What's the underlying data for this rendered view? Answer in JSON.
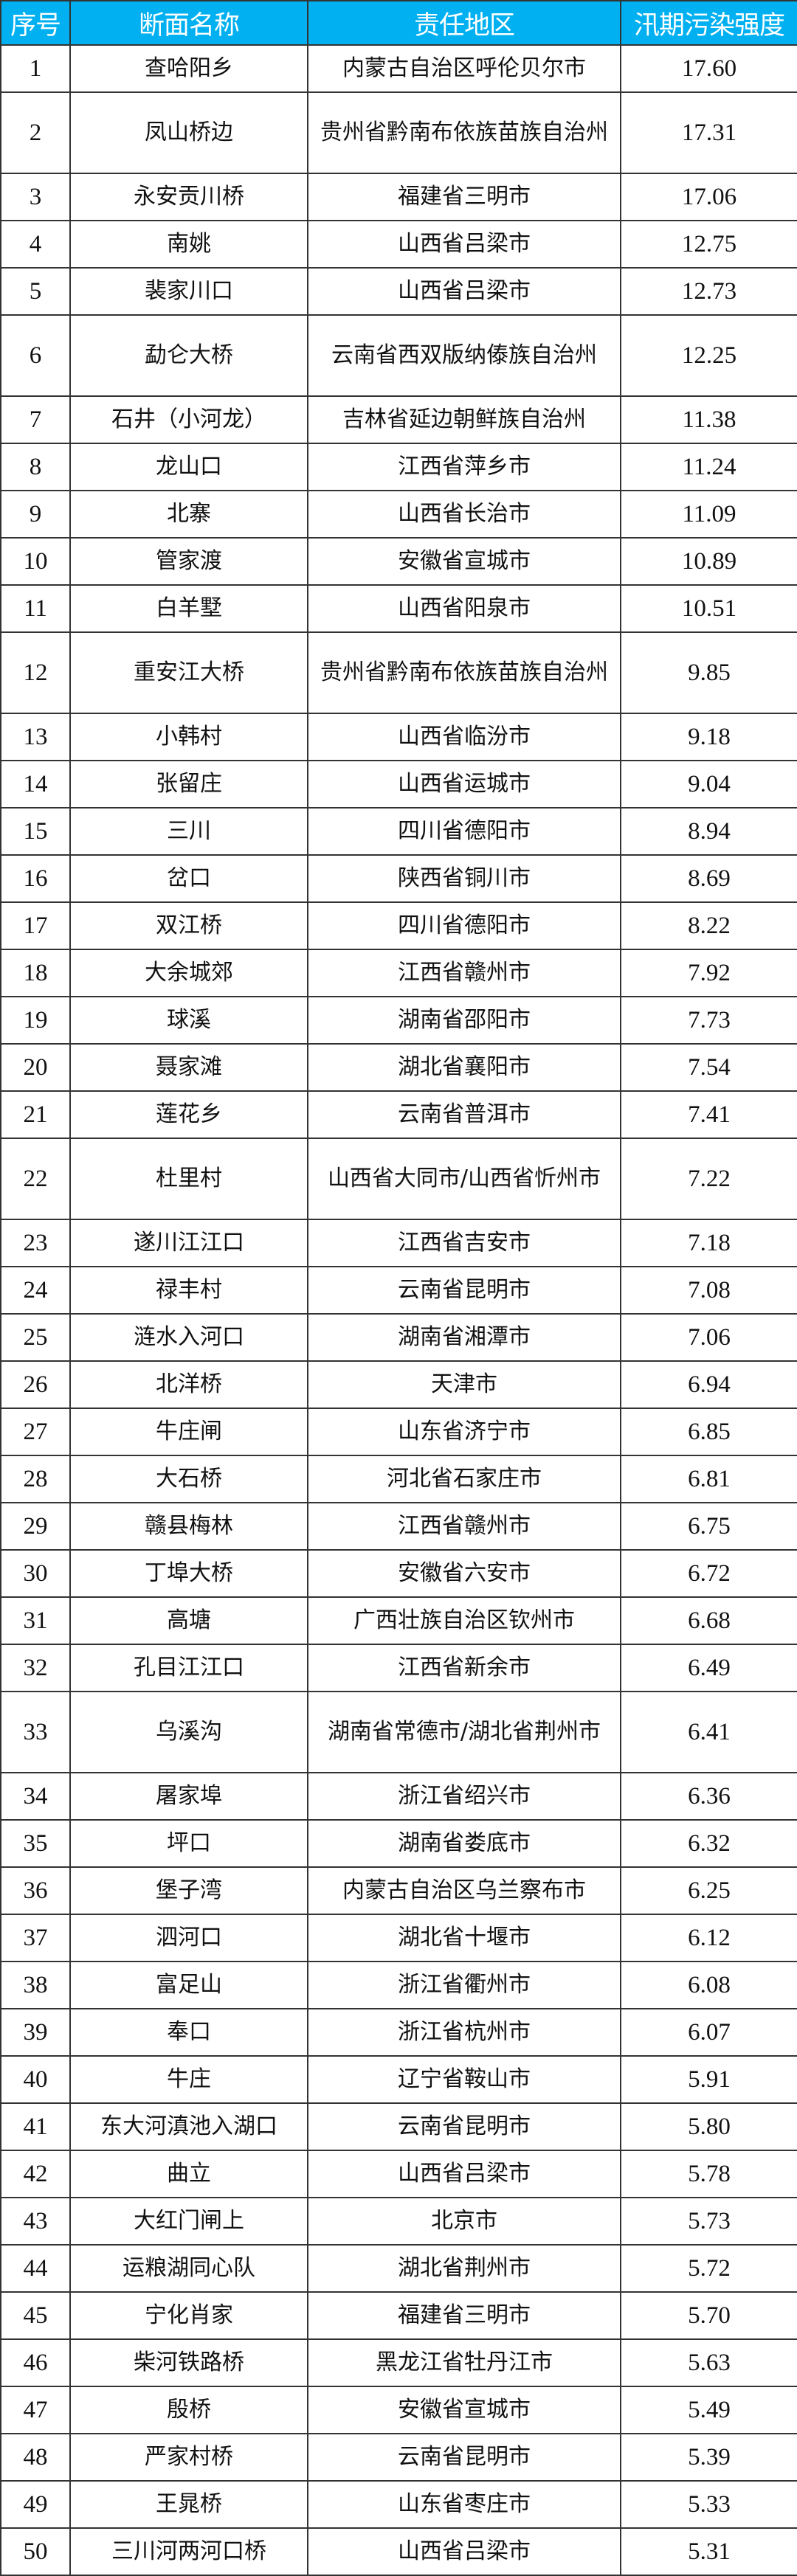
{
  "header": {
    "index": "序号",
    "name": "断面名称",
    "region": "责任地区",
    "value": "汛期污染强度"
  },
  "colors": {
    "header_bg": "#00b0f0",
    "header_text": "#ffffff",
    "border": "#333333"
  },
  "rows": [
    {
      "no": "1",
      "name": "查哈阳乡",
      "region": "内蒙古自治区呼伦贝尔市",
      "value": "17.60"
    },
    {
      "no": "2",
      "name": "凤山桥边",
      "region": "贵州省黔南布依族苗族自治州",
      "value": "17.31"
    },
    {
      "no": "3",
      "name": "永安贡川桥",
      "region": "福建省三明市",
      "value": "17.06"
    },
    {
      "no": "4",
      "name": "南姚",
      "region": "山西省吕梁市",
      "value": "12.75"
    },
    {
      "no": "5",
      "name": "裴家川口",
      "region": "山西省吕梁市",
      "value": "12.73"
    },
    {
      "no": "6",
      "name": "勐仑大桥",
      "region": "云南省西双版纳傣族自治州",
      "value": "12.25"
    },
    {
      "no": "7",
      "name": "石井（小河龙）",
      "region": "吉林省延边朝鲜族自治州",
      "value": "11.38"
    },
    {
      "no": "8",
      "name": "龙山口",
      "region": "江西省萍乡市",
      "value": "11.24"
    },
    {
      "no": "9",
      "name": "北寨",
      "region": "山西省长治市",
      "value": "11.09"
    },
    {
      "no": "10",
      "name": "管家渡",
      "region": "安徽省宣城市",
      "value": "10.89"
    },
    {
      "no": "11",
      "name": "白羊墅",
      "region": "山西省阳泉市",
      "value": "10.51"
    },
    {
      "no": "12",
      "name": "重安江大桥",
      "region": "贵州省黔南布依族苗族自治州",
      "value": "9.85"
    },
    {
      "no": "13",
      "name": "小韩村",
      "region": "山西省临汾市",
      "value": "9.18"
    },
    {
      "no": "14",
      "name": "张留庄",
      "region": "山西省运城市",
      "value": "9.04"
    },
    {
      "no": "15",
      "name": "三川",
      "region": "四川省德阳市",
      "value": "8.94"
    },
    {
      "no": "16",
      "name": "岔口",
      "region": "陕西省铜川市",
      "value": "8.69"
    },
    {
      "no": "17",
      "name": "双江桥",
      "region": "四川省德阳市",
      "value": "8.22"
    },
    {
      "no": "18",
      "name": "大余城郊",
      "region": "江西省赣州市",
      "value": "7.92"
    },
    {
      "no": "19",
      "name": "球溪",
      "region": "湖南省邵阳市",
      "value": "7.73"
    },
    {
      "no": "20",
      "name": "聂家滩",
      "region": "湖北省襄阳市",
      "value": "7.54"
    },
    {
      "no": "21",
      "name": "莲花乡",
      "region": "云南省普洱市",
      "value": "7.41"
    },
    {
      "no": "22",
      "name": "杜里村",
      "region": "山西省大同市/山西省忻州市",
      "value": "7.22"
    },
    {
      "no": "23",
      "name": "遂川江江口",
      "region": "江西省吉安市",
      "value": "7.18"
    },
    {
      "no": "24",
      "name": "禄丰村",
      "region": "云南省昆明市",
      "value": "7.08"
    },
    {
      "no": "25",
      "name": "涟水入河口",
      "region": "湖南省湘潭市",
      "value": "7.06"
    },
    {
      "no": "26",
      "name": "北洋桥",
      "region": "天津市",
      "value": "6.94"
    },
    {
      "no": "27",
      "name": "牛庄闸",
      "region": "山东省济宁市",
      "value": "6.85"
    },
    {
      "no": "28",
      "name": "大石桥",
      "region": "河北省石家庄市",
      "value": "6.81"
    },
    {
      "no": "29",
      "name": "赣县梅林",
      "region": "江西省赣州市",
      "value": "6.75"
    },
    {
      "no": "30",
      "name": "丁埠大桥",
      "region": "安徽省六安市",
      "value": "6.72"
    },
    {
      "no": "31",
      "name": "高塘",
      "region": "广西壮族自治区钦州市",
      "value": "6.68"
    },
    {
      "no": "32",
      "name": "孔目江江口",
      "region": "江西省新余市",
      "value": "6.49"
    },
    {
      "no": "33",
      "name": "乌溪沟",
      "region": "湖南省常德市/湖北省荆州市",
      "value": "6.41"
    },
    {
      "no": "34",
      "name": "屠家埠",
      "region": "浙江省绍兴市",
      "value": "6.36"
    },
    {
      "no": "35",
      "name": "坪口",
      "region": "湖南省娄底市",
      "value": "6.32"
    },
    {
      "no": "36",
      "name": "堡子湾",
      "region": "内蒙古自治区乌兰察布市",
      "value": "6.25"
    },
    {
      "no": "37",
      "name": "泗河口",
      "region": "湖北省十堰市",
      "value": "6.12"
    },
    {
      "no": "38",
      "name": "富足山",
      "region": "浙江省衢州市",
      "value": "6.08"
    },
    {
      "no": "39",
      "name": "奉口",
      "region": "浙江省杭州市",
      "value": "6.07"
    },
    {
      "no": "40",
      "name": "牛庄",
      "region": "辽宁省鞍山市",
      "value": "5.91"
    },
    {
      "no": "41",
      "name": "东大河滇池入湖口",
      "region": "云南省昆明市",
      "value": "5.80"
    },
    {
      "no": "42",
      "name": "曲立",
      "region": "山西省吕梁市",
      "value": "5.78"
    },
    {
      "no": "43",
      "name": "大红门闸上",
      "region": "北京市",
      "value": "5.73"
    },
    {
      "no": "44",
      "name": "运粮湖同心队",
      "region": "湖北省荆州市",
      "value": "5.72"
    },
    {
      "no": "45",
      "name": "宁化肖家",
      "region": "福建省三明市",
      "value": "5.70"
    },
    {
      "no": "46",
      "name": "柴河铁路桥",
      "region": "黑龙江省牡丹江市",
      "value": "5.63"
    },
    {
      "no": "47",
      "name": "殷桥",
      "region": "安徽省宣城市",
      "value": "5.49"
    },
    {
      "no": "48",
      "name": "严家村桥",
      "region": "云南省昆明市",
      "value": "5.39"
    },
    {
      "no": "49",
      "name": "王晁桥",
      "region": "山东省枣庄市",
      "value": "5.33"
    },
    {
      "no": "50",
      "name": "三川河两河口桥",
      "region": "山西省吕梁市",
      "value": "5.31"
    }
  ]
}
